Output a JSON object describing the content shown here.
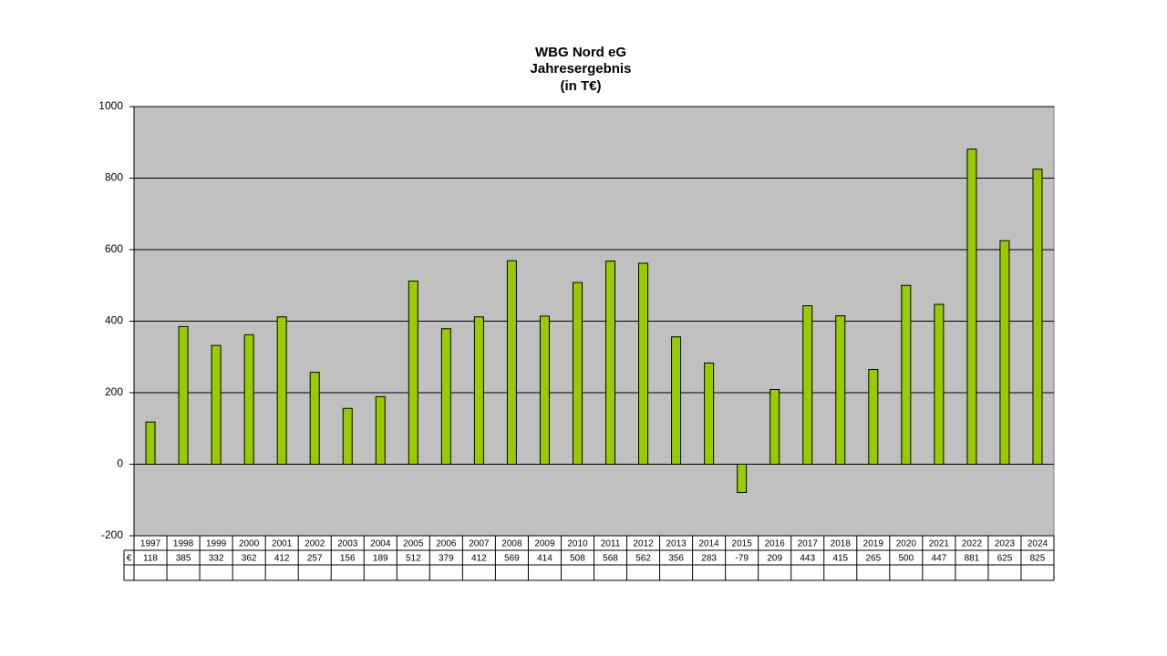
{
  "chart_data": {
    "type": "bar",
    "title": [
      "WBG Nord eG",
      "Jahresergebnis",
      "(in T€)"
    ],
    "categories": [
      "1997",
      "1998",
      "1999",
      "2000",
      "2001",
      "2002",
      "2003",
      "2004",
      "2005",
      "2006",
      "2007",
      "2008",
      "2009",
      "2010",
      "2011",
      "2012",
      "2013",
      "2014",
      "2015",
      "2016",
      "2017",
      "2018",
      "2019",
      "2020",
      "2021",
      "2022",
      "2023",
      "2024"
    ],
    "series": [
      {
        "name": "€",
        "color": "#99cc00",
        "values": [
          118,
          385,
          332,
          362,
          412,
          257,
          156,
          189,
          512,
          379,
          412,
          569,
          414,
          508,
          568,
          562,
          356,
          283,
          -79,
          209,
          443,
          415,
          265,
          500,
          447,
          881,
          625,
          825
        ]
      }
    ],
    "ylim": [
      -200,
      1000
    ],
    "yticks": [
      -200,
      0,
      200,
      400,
      600,
      800,
      1000
    ],
    "grid": true,
    "data_table": true
  }
}
